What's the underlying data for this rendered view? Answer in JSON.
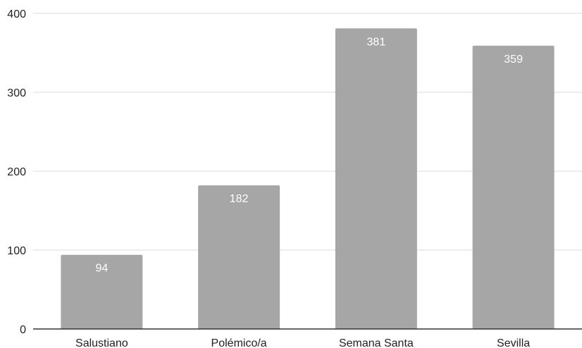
{
  "chart_data": {
    "type": "bar",
    "categories": [
      "Salustiano",
      "Polémico/a",
      "Semana Santa",
      "Sevilla"
    ],
    "values": [
      94,
      182,
      381,
      359
    ],
    "ylim": [
      0,
      400
    ],
    "yticks": [
      0,
      100,
      200,
      300,
      400
    ],
    "grid": true,
    "data_labels": true,
    "title": "",
    "xlabel": "",
    "ylabel": "",
    "colors": {
      "bar": "#a6a6a6",
      "gridline": "#d9d9d9",
      "axis": "#333333",
      "label_text": "#ffffff"
    }
  }
}
